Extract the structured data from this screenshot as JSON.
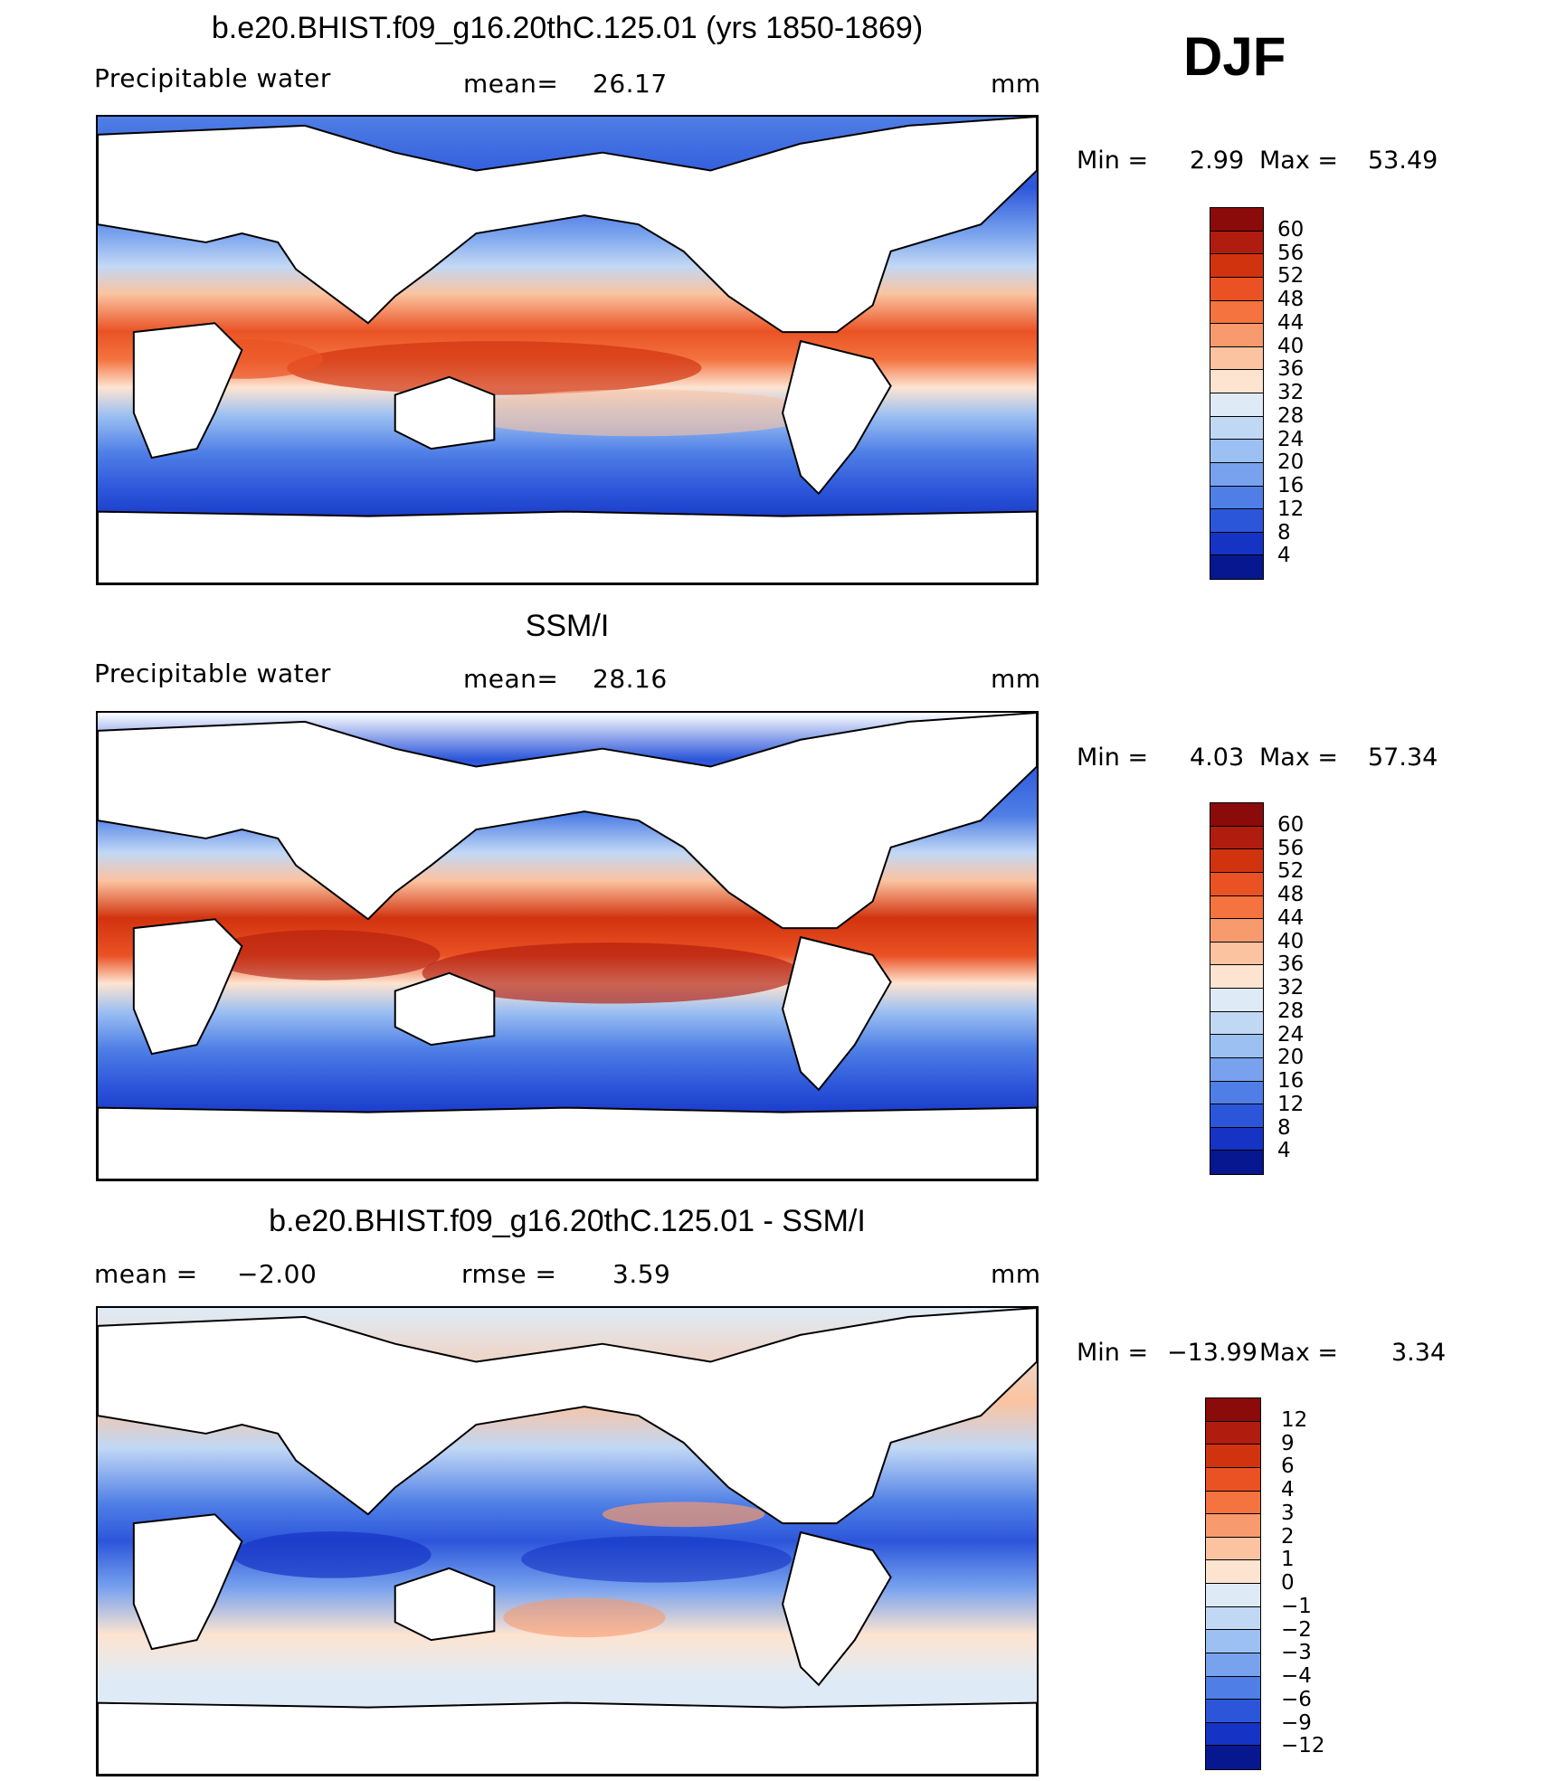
{
  "season": "DJF",
  "panels": [
    {
      "title": "b.e20.BHIST.f09_g16.20thC.125.01 (yrs 1850-1869)",
      "left_label": "Precipitable  water",
      "mid_label": "mean=",
      "mid_value": "26.17",
      "right_label": "mm",
      "min_label": "Min  =",
      "min_value": "2.99",
      "max_label": "Max  =",
      "max_value": "53.49",
      "colorbar": {
        "labels": [
          "60",
          "56",
          "52",
          "48",
          "44",
          "40",
          "36",
          "32",
          "28",
          "24",
          "20",
          "16",
          "12",
          "8",
          "4"
        ],
        "colors": [
          "#8b0a0a",
          "#b01c0e",
          "#d2330f",
          "#ea5224",
          "#f4733f",
          "#f79a6e",
          "#fbc3a0",
          "#fde4d1",
          "#deebf7",
          "#c1d8f5",
          "#9cc0f2",
          "#78a2ee",
          "#4f7fe6",
          "#2c56da",
          "#1533c5",
          "#07178f"
        ]
      }
    },
    {
      "title": "SSM/I",
      "left_label": "Precipitable  water",
      "mid_label": "mean=",
      "mid_value": "28.16",
      "right_label": "mm",
      "min_label": "Min  =",
      "min_value": "4.03",
      "max_label": "Max  =",
      "max_value": "57.34",
      "colorbar": {
        "labels": [
          "60",
          "56",
          "52",
          "48",
          "44",
          "40",
          "36",
          "32",
          "28",
          "24",
          "20",
          "16",
          "12",
          "8",
          "4"
        ],
        "colors": [
          "#8b0a0a",
          "#b01c0e",
          "#d2330f",
          "#ea5224",
          "#f4733f",
          "#f79a6e",
          "#fbc3a0",
          "#fde4d1",
          "#deebf7",
          "#c1d8f5",
          "#9cc0f2",
          "#78a2ee",
          "#4f7fe6",
          "#2c56da",
          "#1533c5",
          "#07178f"
        ]
      }
    },
    {
      "title": "b.e20.BHIST.f09_g16.20thC.125.01 - SSM/I",
      "left_label": "mean  =",
      "left_value": "−2.00",
      "mid_label": "rmse  =",
      "mid_value": "3.59",
      "right_label": "mm",
      "min_label": "Min  =",
      "min_value": "−13.99",
      "max_label": "Max  =",
      "max_value": "3.34",
      "colorbar": {
        "labels": [
          "12",
          "9",
          "6",
          "4",
          "3",
          "2",
          "1",
          "0",
          "−1",
          "−2",
          "−3",
          "−4",
          "−6",
          "−9",
          "−12"
        ],
        "colors": [
          "#8b0a0a",
          "#b01c0e",
          "#d2330f",
          "#ea5224",
          "#f4733f",
          "#f79a6e",
          "#fbc3a0",
          "#fde4d1",
          "#deebf7",
          "#c1d8f5",
          "#9cc0f2",
          "#78a2ee",
          "#4f7fe6",
          "#2c56da",
          "#1533c5",
          "#07178f"
        ]
      }
    }
  ]
}
